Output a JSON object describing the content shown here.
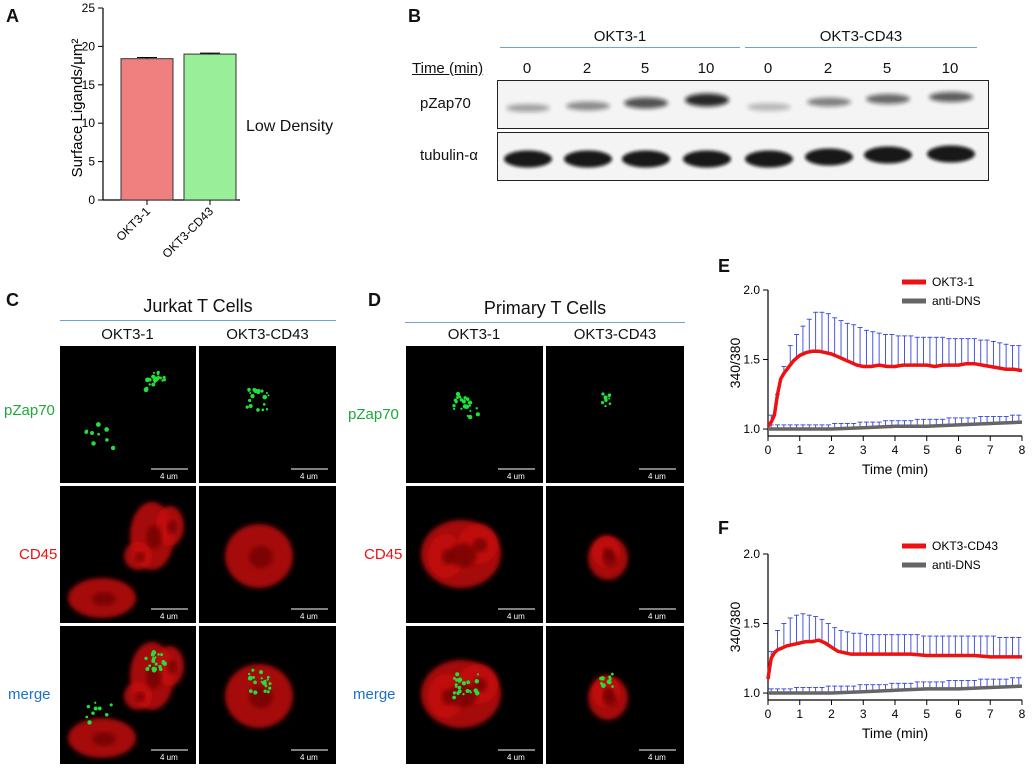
{
  "panels": {
    "A": {
      "letter": "A",
      "side_label": "Low Density",
      "chart_data": {
        "type": "bar",
        "categories": [
          "OKT3-1",
          "OKT3-CD43"
        ],
        "values": [
          18.4,
          19.0
        ],
        "errors": [
          0.15,
          0.12
        ],
        "ylabel": "Surface Ligands/μm²",
        "ylim": [
          0,
          25
        ],
        "yticks": [
          0,
          5,
          10,
          15,
          20,
          25
        ],
        "colors": [
          "#f08080",
          "#99ee99"
        ],
        "grid": false
      }
    },
    "B": {
      "letter": "B",
      "groups": [
        "OKT3-1",
        "OKT3-CD43"
      ],
      "time_header": "Time (min)",
      "times": [
        "0",
        "2",
        "5",
        "10",
        "0",
        "2",
        "5",
        "10"
      ],
      "rows": [
        "pZap70",
        "tubulin-α"
      ]
    },
    "C": {
      "letter": "C",
      "title": "Jurkat T Cells",
      "columns": [
        "OKT3-1",
        "OKT3-CD43"
      ],
      "rows": [
        "pZap70",
        "CD45",
        "merge"
      ],
      "scale_bar": "4 um"
    },
    "D": {
      "letter": "D",
      "title": "Primary T Cells",
      "columns": [
        "OKT3-1",
        "OKT3-CD43"
      ],
      "rows": [
        "pZap70",
        "CD45",
        "merge"
      ],
      "scale_bar": "4 um"
    },
    "E": {
      "letter": "E",
      "chart_data": {
        "type": "line",
        "xlabel": "Time (min)",
        "ylabel": "340/380",
        "xlim": [
          0,
          8
        ],
        "ylim": [
          0.95,
          2.0
        ],
        "xticks": [
          0,
          1,
          2,
          3,
          4,
          5,
          6,
          7,
          8
        ],
        "yticks": [
          1.0,
          1.5,
          2.0
        ],
        "legend_position": "top-right",
        "series": [
          {
            "name": "OKT3-1",
            "color": "#ee1111",
            "x": [
              0,
              0.1,
              0.2,
              0.3,
              0.4,
              0.5,
              0.6,
              0.7,
              0.8,
              0.9,
              1.0,
              1.2,
              1.4,
              1.6,
              1.8,
              2.0,
              2.2,
              2.4,
              2.6,
              2.8,
              3.0,
              3.25,
              3.5,
              3.75,
              4.0,
              4.25,
              4.5,
              4.75,
              5.0,
              5.25,
              5.5,
              5.75,
              6.0,
              6.25,
              6.5,
              6.75,
              7.0,
              7.25,
              7.5,
              7.75,
              8.0
            ],
            "y": [
              1.02,
              1.05,
              1.1,
              1.25,
              1.36,
              1.4,
              1.43,
              1.46,
              1.49,
              1.51,
              1.53,
              1.55,
              1.56,
              1.56,
              1.55,
              1.54,
              1.52,
              1.5,
              1.48,
              1.46,
              1.45,
              1.45,
              1.46,
              1.45,
              1.45,
              1.46,
              1.46,
              1.46,
              1.46,
              1.45,
              1.46,
              1.46,
              1.46,
              1.47,
              1.47,
              1.46,
              1.45,
              1.44,
              1.43,
              1.43,
              1.42
            ]
          },
          {
            "name": "anti-DNS",
            "color": "#666666",
            "x": [
              0,
              1,
              2,
              3,
              4,
              5,
              6,
              7,
              8
            ],
            "y": [
              1.0,
              1.0,
              1.0,
              1.01,
              1.02,
              1.02,
              1.03,
              1.04,
              1.05
            ]
          }
        ],
        "error_bars": {
          "color": "#3344dd",
          "x": [
            0.1,
            0.3,
            0.5,
            0.7,
            0.9,
            1.1,
            1.3,
            1.5,
            1.7,
            1.9,
            2.1,
            2.3,
            2.5,
            2.7,
            2.9,
            3.1,
            3.3,
            3.5,
            3.7,
            3.9,
            4.1,
            4.3,
            4.5,
            4.7,
            4.9,
            5.1,
            5.3,
            5.5,
            5.7,
            5.9,
            6.1,
            6.3,
            6.5,
            6.7,
            6.9,
            7.1,
            7.3,
            7.5,
            7.7,
            7.9
          ],
          "okt3_upper": [
            1.1,
            1.25,
            1.45,
            1.6,
            1.68,
            1.74,
            1.79,
            1.84,
            1.84,
            1.83,
            1.8,
            1.78,
            1.76,
            1.75,
            1.73,
            1.71,
            1.7,
            1.69,
            1.68,
            1.68,
            1.67,
            1.67,
            1.67,
            1.66,
            1.66,
            1.66,
            1.66,
            1.66,
            1.65,
            1.65,
            1.65,
            1.65,
            1.65,
            1.64,
            1.64,
            1.63,
            1.62,
            1.61,
            1.6,
            1.6
          ],
          "control_upper": [
            1.03,
            1.03,
            1.03,
            1.03,
            1.03,
            1.03,
            1.03,
            1.03,
            1.03,
            1.03,
            1.04,
            1.04,
            1.04,
            1.04,
            1.05,
            1.05,
            1.05,
            1.05,
            1.06,
            1.06,
            1.06,
            1.06,
            1.06,
            1.07,
            1.07,
            1.07,
            1.07,
            1.07,
            1.08,
            1.08,
            1.08,
            1.08,
            1.08,
            1.09,
            1.09,
            1.09,
            1.09,
            1.09,
            1.1,
            1.1
          ]
        }
      }
    },
    "F": {
      "letter": "F",
      "chart_data": {
        "type": "line",
        "xlabel": "Time (min)",
        "ylabel": "340/380",
        "xlim": [
          0,
          8
        ],
        "ylim": [
          0.95,
          2.0
        ],
        "xticks": [
          0,
          1,
          2,
          3,
          4,
          5,
          6,
          7,
          8
        ],
        "yticks": [
          1.0,
          1.5,
          2.0
        ],
        "legend_position": "top-right",
        "series": [
          {
            "name": "OKT3-CD43",
            "color": "#ee1111",
            "x": [
              0,
              0.05,
              0.1,
              0.2,
              0.3,
              0.4,
              0.5,
              0.6,
              0.8,
              1.0,
              1.2,
              1.4,
              1.6,
              1.8,
              2.0,
              2.2,
              2.4,
              2.6,
              2.8,
              3.0,
              3.5,
              4.0,
              4.5,
              5.0,
              5.5,
              6.0,
              6.5,
              7.0,
              7.5,
              8.0
            ],
            "y": [
              1.1,
              1.18,
              1.25,
              1.29,
              1.31,
              1.32,
              1.33,
              1.34,
              1.35,
              1.36,
              1.37,
              1.37,
              1.38,
              1.36,
              1.33,
              1.3,
              1.29,
              1.28,
              1.28,
              1.28,
              1.28,
              1.28,
              1.28,
              1.27,
              1.27,
              1.27,
              1.27,
              1.26,
              1.26,
              1.26
            ]
          },
          {
            "name": "anti-DNS",
            "color": "#666666",
            "x": [
              0,
              1,
              2,
              3,
              4,
              5,
              6,
              7,
              8
            ],
            "y": [
              1.0,
              1.0,
              1.0,
              1.01,
              1.02,
              1.03,
              1.03,
              1.04,
              1.05
            ]
          }
        ],
        "error_bars": {
          "color": "#3344dd",
          "x": [
            0.1,
            0.3,
            0.5,
            0.7,
            0.9,
            1.1,
            1.3,
            1.5,
            1.7,
            1.9,
            2.1,
            2.3,
            2.5,
            2.7,
            2.9,
            3.1,
            3.3,
            3.5,
            3.7,
            3.9,
            4.1,
            4.3,
            4.5,
            4.7,
            4.9,
            5.1,
            5.3,
            5.5,
            5.7,
            5.9,
            6.1,
            6.3,
            6.5,
            6.7,
            6.9,
            7.1,
            7.3,
            7.5,
            7.7,
            7.9
          ],
          "okt3_upper": [
            1.3,
            1.45,
            1.5,
            1.54,
            1.56,
            1.57,
            1.56,
            1.55,
            1.53,
            1.5,
            1.47,
            1.45,
            1.44,
            1.43,
            1.43,
            1.42,
            1.42,
            1.42,
            1.42,
            1.42,
            1.42,
            1.42,
            1.42,
            1.42,
            1.41,
            1.41,
            1.41,
            1.41,
            1.41,
            1.41,
            1.41,
            1.41,
            1.41,
            1.41,
            1.41,
            1.41,
            1.4,
            1.4,
            1.4,
            1.4
          ],
          "control_upper": [
            1.03,
            1.03,
            1.03,
            1.03,
            1.04,
            1.04,
            1.04,
            1.04,
            1.04,
            1.05,
            1.05,
            1.05,
            1.05,
            1.05,
            1.06,
            1.06,
            1.06,
            1.06,
            1.06,
            1.07,
            1.07,
            1.07,
            1.07,
            1.08,
            1.08,
            1.08,
            1.08,
            1.08,
            1.09,
            1.09,
            1.09,
            1.09,
            1.09,
            1.1,
            1.1,
            1.1,
            1.1,
            1.1,
            1.11,
            1.11
          ]
        }
      }
    }
  }
}
